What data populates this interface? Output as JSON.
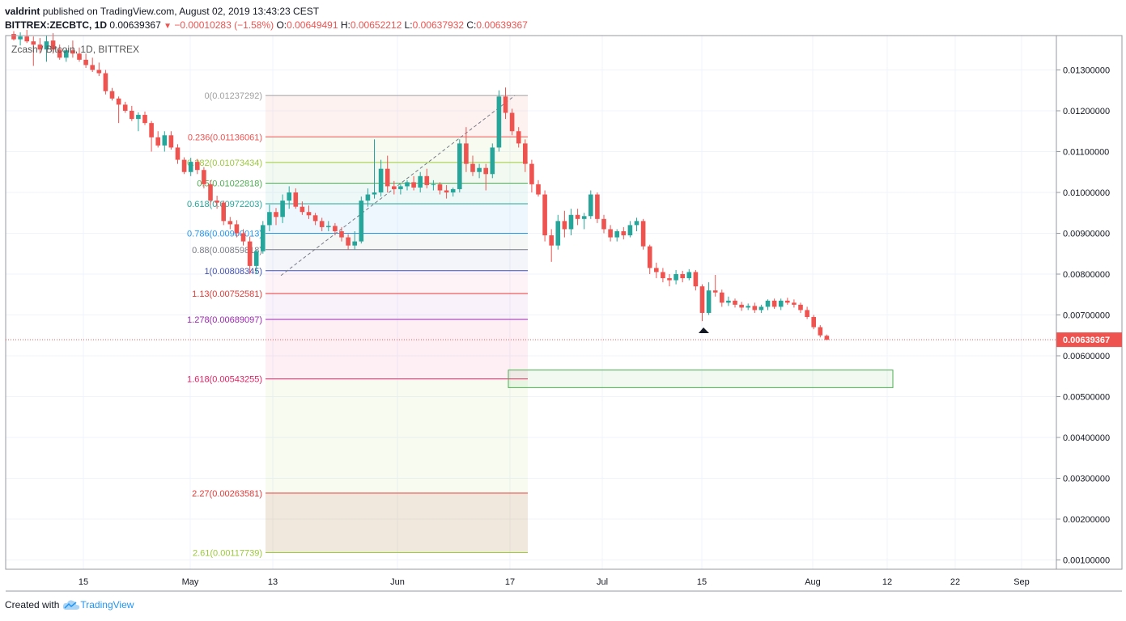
{
  "header": {
    "author": "valdrint",
    "published_text": "published on TradingView.com, August 02, 2019 13:43:23 CEST"
  },
  "quote": {
    "symbol": "BITTREX:ZECBTC, 1D",
    "last": "0.00639367",
    "change": "−0.00010283 (−1.58%)",
    "open_label": "O:",
    "open": "0.00649491",
    "high_label": "H:",
    "high": "0.00652212",
    "low_label": "L:",
    "low": "0.00637932",
    "close_label": "C:",
    "close": "0.00639367"
  },
  "legend": {
    "title": "Zcash / Bitcoin, 1D, BITTREX"
  },
  "footer": {
    "created_with": "Created with",
    "brand": "TradingView"
  },
  "colors": {
    "up": "#26a69a",
    "down": "#ef5350",
    "last_price": "#ef5350",
    "grid": "#f0f3fa",
    "text": "#131722"
  },
  "chart_data": {
    "type": "candlestick",
    "title": "Zcash / Bitcoin, 1D, BITTREX",
    "ylim": [
      0.0008,
      0.0138
    ],
    "y_ticks": [
      "0.01300000",
      "0.01200000",
      "0.01100000",
      "0.01000000",
      "0.00900000",
      "0.00800000",
      "0.00700000",
      "0.00600000",
      "0.00500000",
      "0.00400000",
      "0.00300000",
      "0.00200000",
      "0.00100000"
    ],
    "x_ticks": [
      "15",
      "May",
      "13",
      "Jun",
      "17",
      "Jul",
      "15",
      "Aug",
      "12",
      "22",
      "Sep"
    ],
    "last_price_label": "0.00639367",
    "fib_levels": [
      {
        "label": "0(0.01237292)",
        "value": 0.01237292,
        "color": "#a0a0a0"
      },
      {
        "label": "0.236(0.01136061)",
        "value": 0.01136061,
        "color": "#ef5350"
      },
      {
        "label": "0.382(0.01073434)",
        "value": 0.01073434,
        "color": "#9bc93a"
      },
      {
        "label": "0.5(0.01022818)",
        "value": 0.01022818,
        "color": "#4caf50"
      },
      {
        "label": "0.618(0.00972203)",
        "value": 0.00972203,
        "color": "#26a69a"
      },
      {
        "label": "0.786(0.00900013)",
        "value": 0.00900013,
        "color": "#2196f3"
      },
      {
        "label": "0.88(0.00859818)",
        "value": 0.00859818,
        "color": "#787b86"
      },
      {
        "label": "1(0.00808345)",
        "value": 0.00808345,
        "color": "#3f51b5"
      },
      {
        "label": "1.13(0.00752581)",
        "value": 0.00752581,
        "color": "#e53935"
      },
      {
        "label": "1.278(0.00689097)",
        "value": 0.00689097,
        "color": "#9c27b0"
      },
      {
        "label": "1.618(0.00543255)",
        "value": 0.00543255,
        "color": "#e91e63"
      },
      {
        "label": "2.27(0.00263581)",
        "value": 0.00263581,
        "color": "#e53935"
      },
      {
        "label": "2.61(0.00117739)",
        "value": 0.00117739,
        "color": "#9bc93a"
      }
    ],
    "target_zone": {
      "from": 0.00522,
      "to": 0.00565
    },
    "candles": [
      [
        0.01388,
        0.01395,
        0.01372,
        0.01375
      ],
      [
        0.01375,
        0.01392,
        0.0136,
        0.01382
      ],
      [
        0.01382,
        0.01398,
        0.01366,
        0.0137
      ],
      [
        0.0137,
        0.01382,
        0.0131,
        0.01362
      ],
      [
        0.01362,
        0.01378,
        0.0134,
        0.0135
      ],
      [
        0.0135,
        0.01384,
        0.0132,
        0.0137
      ],
      [
        0.01372,
        0.0139,
        0.0134,
        0.0135
      ],
      [
        0.0135,
        0.01362,
        0.01325,
        0.0133
      ],
      [
        0.0133,
        0.01352,
        0.0132,
        0.01348
      ],
      [
        0.01348,
        0.01372,
        0.0133,
        0.0134
      ],
      [
        0.0134,
        0.01355,
        0.0132,
        0.01325
      ],
      [
        0.01325,
        0.0134,
        0.01305,
        0.01312
      ],
      [
        0.01312,
        0.0133,
        0.01295,
        0.013
      ],
      [
        0.013,
        0.01318,
        0.01285,
        0.01292
      ],
      [
        0.01292,
        0.013,
        0.0124,
        0.01248
      ],
      [
        0.01248,
        0.01256,
        0.01225,
        0.0123
      ],
      [
        0.0123,
        0.01235,
        0.0117,
        0.01215
      ],
      [
        0.01215,
        0.01222,
        0.01195,
        0.012
      ],
      [
        0.012,
        0.01212,
        0.01175,
        0.0118
      ],
      [
        0.0118,
        0.01196,
        0.0115,
        0.0119
      ],
      [
        0.0119,
        0.01198,
        0.01165,
        0.0117
      ],
      [
        0.0117,
        0.01175,
        0.011,
        0.01135
      ],
      [
        0.01135,
        0.0115,
        0.0111,
        0.01115
      ],
      [
        0.01115,
        0.0115,
        0.011,
        0.0114
      ],
      [
        0.0114,
        0.0115,
        0.01105,
        0.0111
      ],
      [
        0.0111,
        0.01118,
        0.0107,
        0.0108
      ],
      [
        0.0108,
        0.01086,
        0.01045,
        0.0105
      ],
      [
        0.0105,
        0.01085,
        0.0104,
        0.01075
      ],
      [
        0.01075,
        0.01082,
        0.01045,
        0.01055
      ],
      [
        0.01055,
        0.01062,
        0.0101,
        0.0102
      ],
      [
        0.0102,
        0.0103,
        0.0097,
        0.0098
      ],
      [
        0.0098,
        0.00992,
        0.0096,
        0.00975
      ],
      [
        0.00975,
        0.0098,
        0.0092,
        0.0093
      ],
      [
        0.0093,
        0.0094,
        0.0091,
        0.00922
      ],
      [
        0.00922,
        0.00932,
        0.0089,
        0.009
      ],
      [
        0.009,
        0.0091,
        0.0087,
        0.0088
      ],
      [
        0.0088,
        0.00892,
        0.008,
        0.0082
      ],
      [
        0.0082,
        0.0086,
        0.008,
        0.00856
      ],
      [
        0.00856,
        0.0093,
        0.0085,
        0.0092
      ],
      [
        0.0092,
        0.0097,
        0.00905,
        0.00952
      ],
      [
        0.00952,
        0.00962,
        0.0092,
        0.0094
      ],
      [
        0.0094,
        0.00995,
        0.00925,
        0.0098
      ],
      [
        0.0098,
        0.01015,
        0.0096,
        0.01
      ],
      [
        0.01,
        0.0101,
        0.0096,
        0.00965
      ],
      [
        0.00965,
        0.00978,
        0.00945,
        0.00952
      ],
      [
        0.00952,
        0.00968,
        0.00935,
        0.00944
      ],
      [
        0.00944,
        0.0095,
        0.0092,
        0.0093
      ],
      [
        0.0093,
        0.00938,
        0.00905,
        0.00915
      ],
      [
        0.00915,
        0.0093,
        0.00905,
        0.00918
      ],
      [
        0.00918,
        0.00925,
        0.00895,
        0.00905
      ],
      [
        0.00905,
        0.00915,
        0.0088,
        0.0089
      ],
      [
        0.0089,
        0.00898,
        0.0086,
        0.0087
      ],
      [
        0.0087,
        0.00905,
        0.0086,
        0.0088
      ],
      [
        0.0088,
        0.0099,
        0.00875,
        0.0098
      ],
      [
        0.0098,
        0.0101,
        0.00965,
        0.00995
      ],
      [
        0.00995,
        0.0113,
        0.00985,
        0.01
      ],
      [
        0.01,
        0.0108,
        0.0099,
        0.01058
      ],
      [
        0.01058,
        0.0109,
        0.01,
        0.01015
      ],
      [
        0.01015,
        0.01028,
        0.00995,
        0.01008
      ],
      [
        0.01008,
        0.0102,
        0.00995,
        0.01015
      ],
      [
        0.01015,
        0.0103,
        0.01005,
        0.01025
      ],
      [
        0.01025,
        0.0104,
        0.01005,
        0.01012
      ],
      [
        0.01012,
        0.0105,
        0.01,
        0.0104
      ],
      [
        0.0104,
        0.01058,
        0.0101,
        0.01018
      ],
      [
        0.01018,
        0.0103,
        0.01005,
        0.0102
      ],
      [
        0.0102,
        0.01025,
        0.00995,
        0.01005
      ],
      [
        0.01005,
        0.01018,
        0.00985,
        0.01
      ],
      [
        0.01,
        0.01012,
        0.0099,
        0.01008
      ],
      [
        0.01008,
        0.0113,
        0.01,
        0.0112
      ],
      [
        0.0112,
        0.0116,
        0.0105,
        0.0107
      ],
      [
        0.0107,
        0.0109,
        0.0104,
        0.0105
      ],
      [
        0.0105,
        0.0107,
        0.01035,
        0.0106
      ],
      [
        0.0106,
        0.0107,
        0.01005,
        0.01045
      ],
      [
        0.01045,
        0.0112,
        0.01035,
        0.0111
      ],
      [
        0.0111,
        0.0125,
        0.011,
        0.01235
      ],
      [
        0.01235,
        0.01257,
        0.0118,
        0.01195
      ],
      [
        0.01195,
        0.01205,
        0.0114,
        0.0115
      ],
      [
        0.0115,
        0.0116,
        0.0111,
        0.0112
      ],
      [
        0.0112,
        0.0113,
        0.0105,
        0.0107
      ],
      [
        0.0107,
        0.0108,
        0.01,
        0.0102
      ],
      [
        0.0102,
        0.0103,
        0.0099,
        0.00995
      ],
      [
        0.00995,
        0.01005,
        0.0088,
        0.00895
      ],
      [
        0.00895,
        0.0091,
        0.0083,
        0.0087
      ],
      [
        0.0087,
        0.00945,
        0.0086,
        0.0093
      ],
      [
        0.0093,
        0.00955,
        0.0089,
        0.0091
      ],
      [
        0.0091,
        0.0096,
        0.00895,
        0.00945
      ],
      [
        0.00945,
        0.0096,
        0.0092,
        0.00935
      ],
      [
        0.00935,
        0.0095,
        0.0091,
        0.00942
      ],
      [
        0.00942,
        0.01005,
        0.00935,
        0.00995
      ],
      [
        0.00995,
        0.01,
        0.00925,
        0.00935
      ],
      [
        0.00935,
        0.00945,
        0.009,
        0.0091
      ],
      [
        0.0091,
        0.0092,
        0.0088,
        0.0089
      ],
      [
        0.0089,
        0.0091,
        0.0088,
        0.00905
      ],
      [
        0.00905,
        0.00915,
        0.00885,
        0.00895
      ],
      [
        0.00895,
        0.0093,
        0.0089,
        0.0092
      ],
      [
        0.0092,
        0.00938,
        0.00905,
        0.0093
      ],
      [
        0.0093,
        0.00935,
        0.0086,
        0.00868
      ],
      [
        0.00868,
        0.00872,
        0.008,
        0.00815
      ],
      [
        0.00815,
        0.00828,
        0.0079,
        0.00805
      ],
      [
        0.00805,
        0.00815,
        0.0078,
        0.0079
      ],
      [
        0.0079,
        0.008,
        0.0077,
        0.00785
      ],
      [
        0.00785,
        0.0081,
        0.00775,
        0.008
      ],
      [
        0.008,
        0.00808,
        0.0078,
        0.0079
      ],
      [
        0.0079,
        0.00812,
        0.00785,
        0.00805
      ],
      [
        0.00805,
        0.0081,
        0.0076,
        0.0077
      ],
      [
        0.0077,
        0.00775,
        0.00685,
        0.00705
      ],
      [
        0.00705,
        0.0078,
        0.007,
        0.0076
      ],
      [
        0.0076,
        0.00798,
        0.00745,
        0.00755
      ],
      [
        0.00755,
        0.00762,
        0.0072,
        0.0073
      ],
      [
        0.0073,
        0.00745,
        0.00722,
        0.00735
      ],
      [
        0.00735,
        0.0074,
        0.00718,
        0.00725
      ],
      [
        0.00725,
        0.00732,
        0.0071,
        0.00718
      ],
      [
        0.00718,
        0.00728,
        0.00712,
        0.00722
      ],
      [
        0.00722,
        0.0073,
        0.00705,
        0.00712
      ],
      [
        0.00712,
        0.00725,
        0.00705,
        0.0072
      ],
      [
        0.0072,
        0.00738,
        0.00712,
        0.00735
      ],
      [
        0.00735,
        0.0074,
        0.00715,
        0.0072
      ],
      [
        0.0072,
        0.0074,
        0.00712,
        0.00735
      ],
      [
        0.00735,
        0.00742,
        0.00725,
        0.0073
      ],
      [
        0.0073,
        0.00738,
        0.00718,
        0.00725
      ],
      [
        0.00725,
        0.0073,
        0.00705,
        0.00712
      ],
      [
        0.00712,
        0.0072,
        0.0069,
        0.00695
      ],
      [
        0.00695,
        0.007,
        0.00665,
        0.0067
      ],
      [
        0.0067,
        0.00675,
        0.00645,
        0.0065
      ],
      [
        0.00649,
        0.00652,
        0.00638,
        0.00639
      ]
    ]
  }
}
